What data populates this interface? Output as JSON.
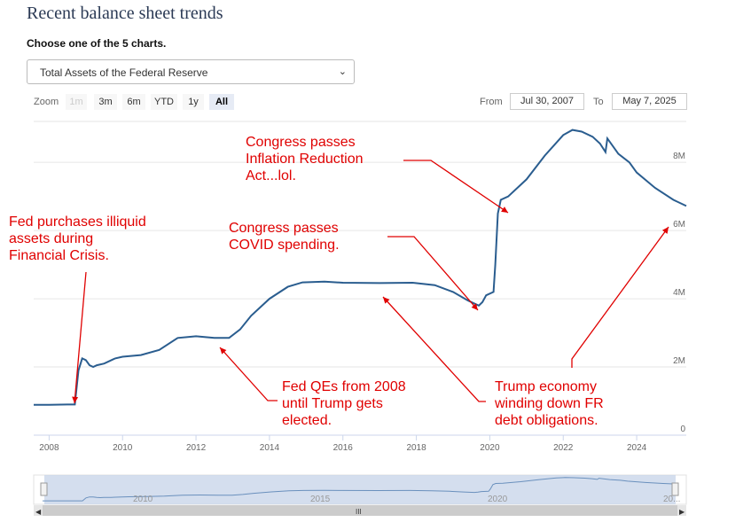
{
  "header": {
    "title": "Recent balance sheet trends",
    "choose_label": "Choose one of the 5 charts."
  },
  "selector": {
    "selected": "Total Assets of the Federal Reserve"
  },
  "zoom": {
    "label": "Zoom",
    "buttons": [
      "1m",
      "3m",
      "6m",
      "YTD",
      "1y",
      "All"
    ],
    "active": "All",
    "disabled": "1m"
  },
  "range": {
    "from_label": "From",
    "from": "Jul 30, 2007",
    "to_label": "To",
    "to": "May 7, 2025"
  },
  "navigator": {
    "labels": [
      "2010",
      "2015",
      "2020",
      "20..."
    ],
    "handle": "III"
  },
  "colors": {
    "line": "#2a5d8f",
    "annotation": "#e00000",
    "navigator_fill": "#c9d6ea"
  },
  "annotations": [
    {
      "lines": [
        "Fed purchases illiquid",
        "assets during",
        "Financial Crisis."
      ]
    },
    {
      "lines": [
        "Congress passes",
        "Inflation Reduction",
        "Act...lol."
      ]
    },
    {
      "lines": [
        "Congress passes",
        "COVID spending."
      ]
    },
    {
      "lines": [
        "Fed QEs from 2008",
        "until Trump gets",
        "elected."
      ]
    },
    {
      "lines": [
        "Trump economy",
        "winding down FR",
        "debt obligations."
      ]
    }
  ],
  "chart_data": {
    "type": "line",
    "title": "Total Assets of the Federal Reserve",
    "xlabel": "",
    "ylabel": "",
    "xlim": [
      2007.58,
      2025.35
    ],
    "ylim": [
      0,
      9200000
    ],
    "x_ticks": [
      2008,
      2010,
      2012,
      2014,
      2016,
      2018,
      2020,
      2022,
      2024
    ],
    "y_ticks": [
      0,
      2000000,
      4000000,
      6000000,
      8000000
    ],
    "y_tick_labels": [
      "0",
      "2M",
      "4M",
      "6M",
      "8M"
    ],
    "grid": true,
    "series": [
      {
        "name": "Total Assets",
        "x": [
          2007.58,
          2008.0,
          2008.5,
          2008.7,
          2008.8,
          2008.9,
          2009.0,
          2009.1,
          2009.2,
          2009.3,
          2009.5,
          2009.8,
          2010.0,
          2010.5,
          2011.0,
          2011.5,
          2012.0,
          2012.5,
          2012.9,
          2013.2,
          2013.5,
          2014.0,
          2014.5,
          2014.9,
          2015.5,
          2016.0,
          2017.0,
          2017.9,
          2018.5,
          2019.0,
          2019.4,
          2019.7,
          2019.8,
          2019.9,
          2020.1,
          2020.15,
          2020.22,
          2020.3,
          2020.5,
          2021.0,
          2021.5,
          2022.0,
          2022.25,
          2022.5,
          2022.8,
          2023.0,
          2023.15,
          2023.2,
          2023.5,
          2023.8,
          2024.0,
          2024.5,
          2025.0,
          2025.35
        ],
        "y": [
          890000,
          890000,
          900000,
          900000,
          1900000,
          2250000,
          2200000,
          2050000,
          2000000,
          2050000,
          2100000,
          2250000,
          2300000,
          2350000,
          2500000,
          2850000,
          2900000,
          2850000,
          2850000,
          3100000,
          3500000,
          4000000,
          4350000,
          4480000,
          4500000,
          4470000,
          4460000,
          4470000,
          4400000,
          4200000,
          3950000,
          3800000,
          3900000,
          4100000,
          4200000,
          5000000,
          6500000,
          6900000,
          7000000,
          7500000,
          8200000,
          8800000,
          8950000,
          8900000,
          8750000,
          8550000,
          8300000,
          8700000,
          8250000,
          8000000,
          7700000,
          7250000,
          6900000,
          6720000
        ]
      }
    ]
  }
}
